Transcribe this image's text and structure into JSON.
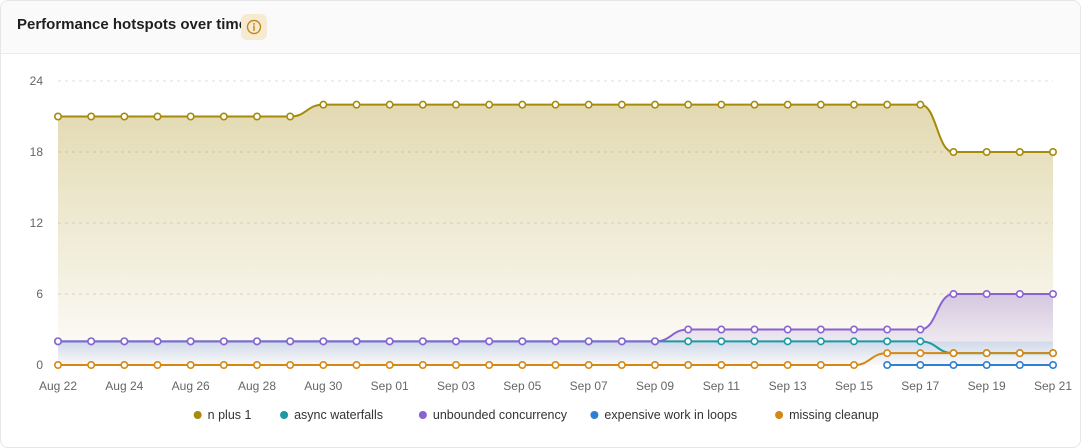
{
  "header": {
    "title": "Performance hotspots over time",
    "info_icon": "info-circle-icon"
  },
  "chart_data": {
    "type": "area",
    "ylim": [
      0,
      24
    ],
    "yticks": [
      0,
      6,
      12,
      18,
      24
    ],
    "grid": true,
    "legend_position": "bottom-center",
    "categories": [
      "Aug 22",
      "Aug 23",
      "Aug 24",
      "Aug 25",
      "Aug 26",
      "Aug 27",
      "Aug 28",
      "Aug 29",
      "Aug 30",
      "Aug 31",
      "Sep 01",
      "Sep 02",
      "Sep 03",
      "Sep 04",
      "Sep 05",
      "Sep 06",
      "Sep 07",
      "Sep 08",
      "Sep 09",
      "Sep 10",
      "Sep 11",
      "Sep 12",
      "Sep 13",
      "Sep 14",
      "Sep 15",
      "Sep 16",
      "Sep 17",
      "Sep 18",
      "Sep 19",
      "Sep 20",
      "Sep 21"
    ],
    "xtick_labels": [
      "Aug 22",
      "Aug 24",
      "Aug 26",
      "Aug 28",
      "Aug 30",
      "Sep 01",
      "Sep 03",
      "Sep 05",
      "Sep 07",
      "Sep 09",
      "Sep 11",
      "Sep 13",
      "Sep 15",
      "Sep 17",
      "Sep 19",
      "Sep 21"
    ],
    "series": [
      {
        "name": "n plus 1",
        "color": "#a68a0c",
        "fill": true,
        "values": [
          21,
          21,
          21,
          21,
          21,
          21,
          21,
          21,
          22,
          22,
          22,
          22,
          22,
          22,
          22,
          22,
          22,
          22,
          22,
          22,
          22,
          22,
          22,
          22,
          22,
          22,
          22,
          18,
          18,
          18,
          18
        ]
      },
      {
        "name": "async waterfalls",
        "color": "#1a9aa3",
        "fill": false,
        "values": [
          2,
          2,
          2,
          2,
          2,
          2,
          2,
          2,
          2,
          2,
          2,
          2,
          2,
          2,
          2,
          2,
          2,
          2,
          2,
          2,
          2,
          2,
          2,
          2,
          2,
          2,
          2,
          1,
          1,
          1,
          1
        ]
      },
      {
        "name": "unbounded concurrency",
        "color": "#8a63d2",
        "fill": true,
        "values": [
          2,
          2,
          2,
          2,
          2,
          2,
          2,
          2,
          2,
          2,
          2,
          2,
          2,
          2,
          2,
          2,
          2,
          2,
          2,
          3,
          3,
          3,
          3,
          3,
          3,
          3,
          3,
          6,
          6,
          6,
          6
        ]
      },
      {
        "name": "expensive work in loops",
        "color": "#2d7fd1",
        "fill": false,
        "values": [
          null,
          null,
          null,
          null,
          null,
          null,
          null,
          null,
          null,
          null,
          null,
          null,
          null,
          null,
          null,
          null,
          null,
          null,
          null,
          null,
          null,
          null,
          null,
          null,
          null,
          0,
          0,
          0,
          0,
          0,
          0
        ]
      },
      {
        "name": "missing cleanup",
        "color": "#d58812",
        "fill": false,
        "values": [
          0,
          0,
          0,
          0,
          0,
          0,
          0,
          0,
          0,
          0,
          0,
          0,
          0,
          0,
          0,
          0,
          0,
          0,
          0,
          0,
          0,
          0,
          0,
          0,
          0,
          1,
          1,
          1,
          1,
          1,
          1
        ]
      }
    ]
  }
}
